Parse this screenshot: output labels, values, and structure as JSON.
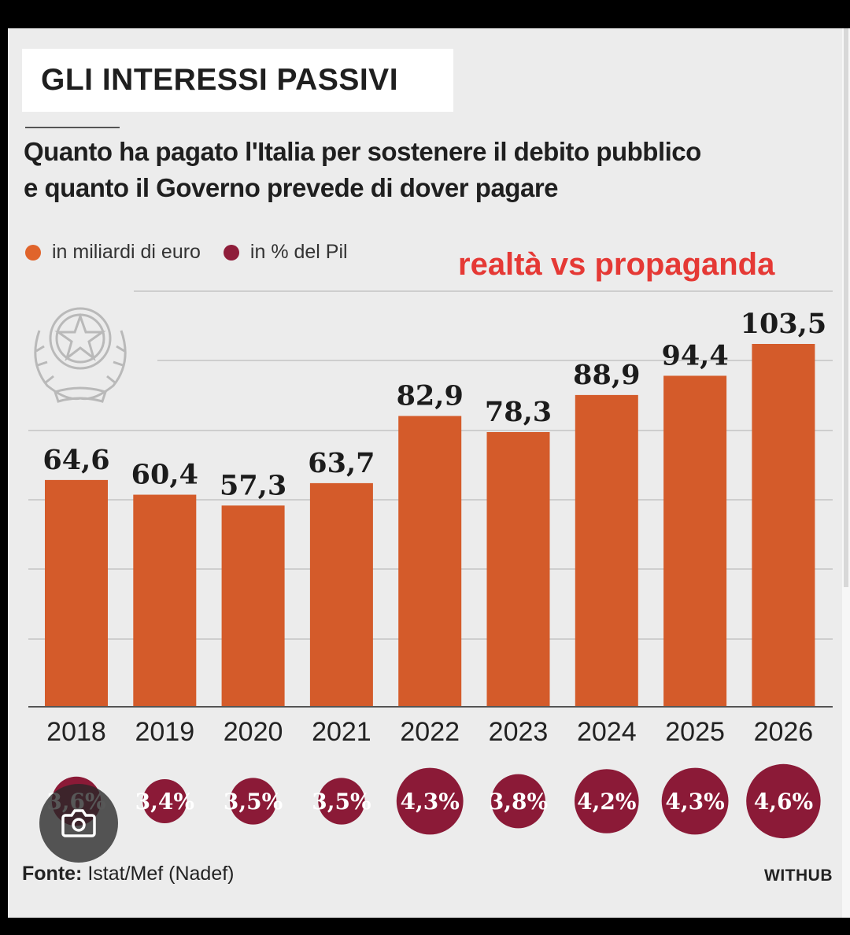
{
  "title": "GLI INTERESSI PASSIVI",
  "subtitle_line1": "Quanto ha pagato l'Italia per sostenere il debito pubblico",
  "subtitle_line2": "e quanto il Governo prevede di dover pagare",
  "legend": [
    {
      "label": "in miliardi di euro",
      "color": "#e0642b"
    },
    {
      "label": "in % del Pil",
      "color": "#8f1d3a"
    }
  ],
  "annotation": "realtà vs propaganda",
  "source_label": "Fonte:",
  "source_text": "Istat/Mef (Nadef)",
  "brand": "WITHUB",
  "colors": {
    "bar": "#d45b2a",
    "circle": "#8b1a37",
    "annotation": "#e53935"
  },
  "chart_data": {
    "type": "bar",
    "categories": [
      "2018",
      "2019",
      "2020",
      "2021",
      "2022",
      "2023",
      "2024",
      "2025",
      "2026"
    ],
    "series": [
      {
        "name": "in miliardi di euro",
        "values": [
          64.6,
          60.4,
          57.3,
          63.7,
          82.9,
          78.3,
          88.9,
          94.4,
          103.5
        ],
        "labels": [
          "64,6",
          "60,4",
          "57,3",
          "63,7",
          "82,9",
          "78,3",
          "88,9",
          "94,4",
          "103,5"
        ]
      },
      {
        "name": "in % del Pil",
        "values": [
          3.6,
          3.4,
          3.5,
          3.5,
          4.3,
          3.8,
          4.2,
          4.3,
          4.6
        ],
        "labels": [
          "3,6%",
          "3,4%",
          "3,5%",
          "3,5%",
          "4,3%",
          "3,8%",
          "4,2%",
          "4,3%",
          "4,6%"
        ]
      }
    ],
    "ylim": [
      0,
      105
    ],
    "grid": true,
    "legend_position": "top-left"
  }
}
